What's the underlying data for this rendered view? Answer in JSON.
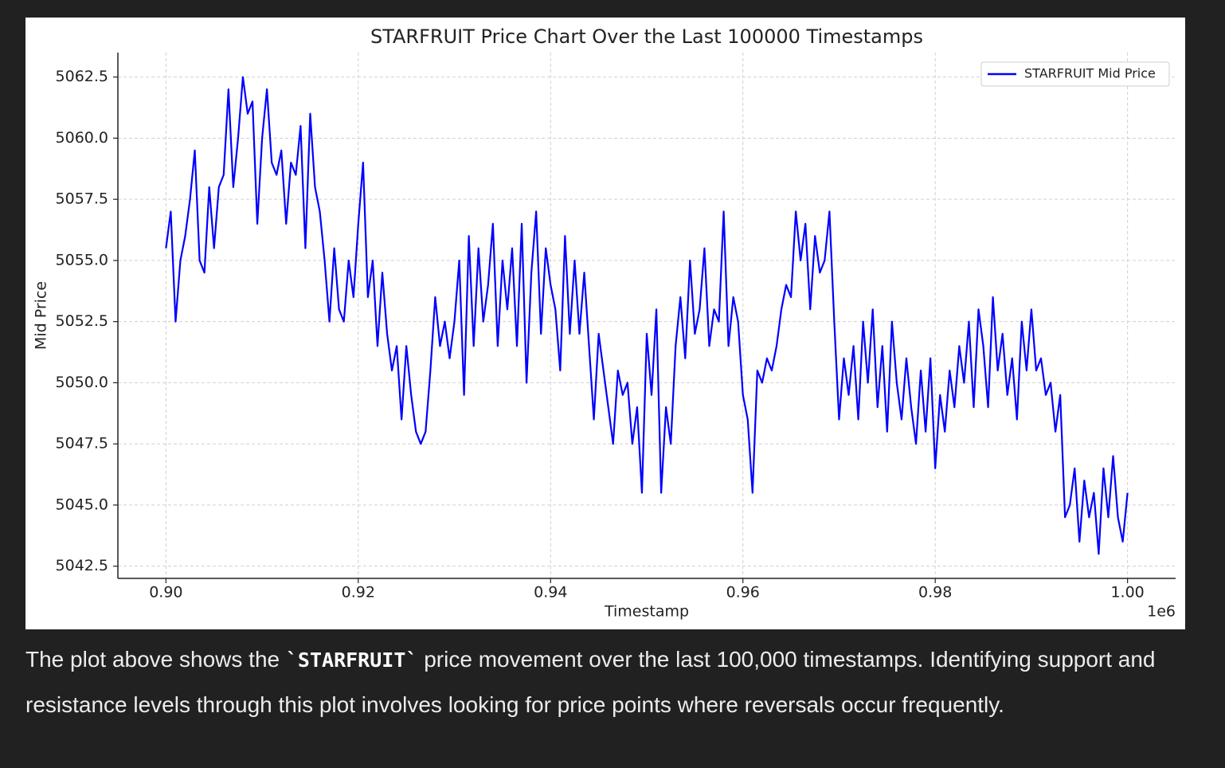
{
  "chart_data": {
    "type": "line",
    "title": "STARFRUIT Price Chart Over the Last 100000 Timestamps",
    "x_label": "Timestamp",
    "y_label": "Mid Price",
    "x_offset_label": "1e6",
    "xlim": [
      895000,
      1005000
    ],
    "ylim": [
      5042,
      5063.5
    ],
    "xticks": [
      {
        "value": 900000,
        "label": "0.90"
      },
      {
        "value": 920000,
        "label": "0.92"
      },
      {
        "value": 940000,
        "label": "0.94"
      },
      {
        "value": 960000,
        "label": "0.96"
      },
      {
        "value": 980000,
        "label": "0.98"
      },
      {
        "value": 1000000,
        "label": "1.00"
      }
    ],
    "yticks": [
      5042.5,
      {
        "value": 5045,
        "label": "5045.0"
      },
      5047.5,
      {
        "value": 5050,
        "label": "5050.0"
      },
      5052.5,
      {
        "value": 5055,
        "label": "5055.0"
      },
      5057.5,
      {
        "value": 5060,
        "label": "5060.0"
      },
      5062.5
    ],
    "grid": true,
    "legend": "upper right",
    "x": [
      900000,
      900500,
      901000,
      901500,
      902000,
      902500,
      903000,
      903500,
      904000,
      904500,
      905000,
      905500,
      906000,
      906500,
      907000,
      907500,
      908000,
      908500,
      909000,
      909500,
      910000,
      910500,
      911000,
      911500,
      912000,
      912500,
      913000,
      913500,
      914000,
      914500,
      915000,
      915500,
      916000,
      916500,
      917000,
      917500,
      918000,
      918500,
      919000,
      919500,
      920000,
      920500,
      921000,
      921500,
      922000,
      922500,
      923000,
      923500,
      924000,
      924500,
      925000,
      925500,
      926000,
      926500,
      927000,
      927500,
      928000,
      928500,
      929000,
      929500,
      930000,
      930500,
      931000,
      931500,
      932000,
      932500,
      933000,
      933500,
      934000,
      934500,
      935000,
      935500,
      936000,
      936500,
      937000,
      937500,
      938000,
      938500,
      939000,
      939500,
      940000,
      940500,
      941000,
      941500,
      942000,
      942500,
      943000,
      943500,
      944000,
      944500,
      945000,
      945500,
      946000,
      946500,
      947000,
      947500,
      948000,
      948500,
      949000,
      949500,
      950000,
      950500,
      951000,
      951500,
      952000,
      952500,
      953000,
      953500,
      954000,
      954500,
      955000,
      955500,
      956000,
      956500,
      957000,
      957500,
      958000,
      958500,
      959000,
      959500,
      960000,
      960500,
      961000,
      961500,
      962000,
      962500,
      963000,
      963500,
      964000,
      964500,
      965000,
      965500,
      966000,
      966500,
      967000,
      967500,
      968000,
      968500,
      969000,
      969500,
      970000,
      970500,
      971000,
      971500,
      972000,
      972500,
      973000,
      973500,
      974000,
      974500,
      975000,
      975500,
      976000,
      976500,
      977000,
      977500,
      978000,
      978500,
      979000,
      979500,
      980000,
      980500,
      981000,
      981500,
      982000,
      982500,
      983000,
      983500,
      984000,
      984500,
      985000,
      985500,
      986000,
      986500,
      987000,
      987500,
      988000,
      988500,
      989000,
      989500,
      990000,
      990500,
      991000,
      991500,
      992000,
      992500,
      993000,
      993500,
      994000,
      994500,
      995000,
      995500,
      996000,
      996500,
      997000,
      997500,
      998000,
      998500,
      999000,
      999500,
      1000000
    ],
    "series": [
      {
        "name": "STARFRUIT Mid Price",
        "color": "#0000ff",
        "values": [
          5055.5,
          5057,
          5052.5,
          5055,
          5056,
          5057.5,
          5059.5,
          5055,
          5054.5,
          5058,
          5055.5,
          5058,
          5058.5,
          5062,
          5058,
          5060,
          5062.5,
          5061,
          5061.5,
          5056.5,
          5060,
          5062,
          5059,
          5058.5,
          5059.5,
          5056.5,
          5059,
          5058.5,
          5060.5,
          5055.5,
          5061,
          5058,
          5057,
          5055,
          5052.5,
          5055.5,
          5053,
          5052.5,
          5055,
          5053.5,
          5056.5,
          5059,
          5053.5,
          5055,
          5051.5,
          5054.5,
          5052,
          5050.5,
          5051.5,
          5048.5,
          5051.5,
          5049.5,
          5048,
          5047.5,
          5048,
          5050.5,
          5053.5,
          5051.5,
          5052.5,
          5051,
          5052.5,
          5055,
          5049.5,
          5056,
          5051.5,
          5055.5,
          5052.5,
          5054,
          5056.5,
          5051.5,
          5055,
          5053,
          5055.5,
          5051.5,
          5056.5,
          5050,
          5054.5,
          5057,
          5052,
          5055.5,
          5054,
          5053,
          5050.5,
          5056,
          5052,
          5055,
          5052,
          5054.5,
          5051.5,
          5048.5,
          5052,
          5050.5,
          5049,
          5047.5,
          5050.5,
          5049.5,
          5050,
          5047.5,
          5049,
          5045.5,
          5052,
          5049.5,
          5053,
          5045.5,
          5049,
          5047.5,
          5051.5,
          5053.5,
          5051,
          5055,
          5052,
          5053,
          5055.5,
          5051.5,
          5053,
          5052.5,
          5057,
          5051.5,
          5053.5,
          5052.5,
          5049.5,
          5048.5,
          5045.5,
          5050.5,
          5050,
          5051,
          5050.5,
          5051.5,
          5053,
          5054,
          5053.5,
          5057,
          5055,
          5056.5,
          5053,
          5056,
          5054.5,
          5055,
          5057,
          5052.5,
          5048.5,
          5051,
          5049.5,
          5051.5,
          5048.5,
          5052.5,
          5050,
          5053,
          5049,
          5051.5,
          5048,
          5052.5,
          5050,
          5048.5,
          5051,
          5049,
          5047.5,
          5050.5,
          5048,
          5051,
          5046.5,
          5049.5,
          5048,
          5050.5,
          5049,
          5051.5,
          5050,
          5052.5,
          5049,
          5053,
          5051.5,
          5049,
          5053.5,
          5050.5,
          5052,
          5049.5,
          5051,
          5048.5,
          5052.5,
          5050.5,
          5053,
          5050.5,
          5051,
          5049.5,
          5050,
          5048,
          5049.5,
          5044.5,
          5045,
          5046.5,
          5043.5,
          5046,
          5044.5,
          5045.5,
          5043,
          5046.5,
          5044.5,
          5047,
          5044.5,
          5043.5,
          5045.5
        ]
      }
    ]
  },
  "message": {
    "before": "The plot above shows the ",
    "code": "`STARFRUIT`",
    "after": " price movement over the last 100,000 timestamps. Identifying support and resistance levels through this plot involves looking for price points where reversals occur frequently."
  }
}
